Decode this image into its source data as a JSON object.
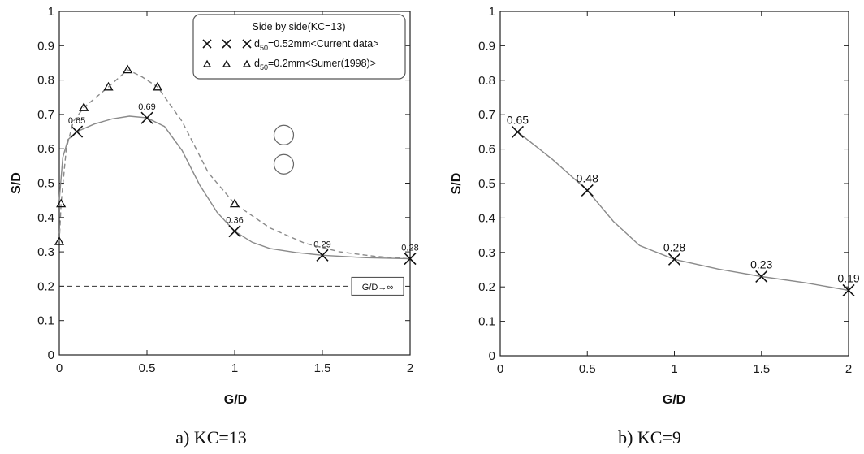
{
  "chart_data": [
    {
      "id": "a",
      "type": "line",
      "caption": "a) KC=13",
      "xlabel": "G/D",
      "ylabel": "S/D",
      "xlim": [
        0,
        2
      ],
      "ylim": [
        0,
        1
      ],
      "xticks": [
        "0",
        "0.5",
        "1",
        "1.5",
        "2"
      ],
      "yticks": [
        "0",
        "0.1",
        "0.2",
        "0.3",
        "0.4",
        "0.5",
        "0.6",
        "0.7",
        "0.8",
        "0.9",
        "1"
      ],
      "grid": false,
      "legend": {
        "placement": "top-right",
        "title": "Side by side(KC=13)",
        "entries": [
          {
            "series": 0,
            "marker_count": 3,
            "text_main": "d",
            "text_sub": "50",
            "text_rest": "=0.52mm<Current data>"
          },
          {
            "series": 1,
            "marker_count": 3,
            "text_main": "d",
            "text_sub": "50",
            "text_rest": "=0.2mm<Sumer(1998)>"
          }
        ]
      },
      "series": [
        {
          "marker": "x",
          "line": "solid",
          "color": "#8a8a8a",
          "x": [
            0.1,
            0.5,
            1.0,
            1.5,
            2.0
          ],
          "y": [
            0.65,
            0.69,
            0.36,
            0.29,
            0.28
          ],
          "labels": [
            "0.65",
            "0.69",
            "0.36",
            "0.29",
            "0.28"
          ],
          "curve": [
            [
              0.0,
              0.45
            ],
            [
              0.02,
              0.575
            ],
            [
              0.05,
              0.627
            ],
            [
              0.1,
              0.65
            ],
            [
              0.2,
              0.672
            ],
            [
              0.3,
              0.687
            ],
            [
              0.4,
              0.695
            ],
            [
              0.5,
              0.69
            ],
            [
              0.6,
              0.665
            ],
            [
              0.7,
              0.595
            ],
            [
              0.8,
              0.495
            ],
            [
              0.9,
              0.415
            ],
            [
              1.0,
              0.36
            ],
            [
              1.1,
              0.328
            ],
            [
              1.2,
              0.31
            ],
            [
              1.35,
              0.298
            ],
            [
              1.5,
              0.29
            ],
            [
              1.75,
              0.283
            ],
            [
              2.0,
              0.28
            ]
          ]
        },
        {
          "marker": "triangle",
          "line": "dashed",
          "color": "#8a8a8a",
          "x": [
            0.0,
            0.01,
            0.14,
            0.28,
            0.39,
            0.56,
            1.0
          ],
          "y": [
            0.33,
            0.44,
            0.72,
            0.78,
            0.83,
            0.78,
            0.44
          ],
          "curve": [
            [
              0.0,
              0.33
            ],
            [
              0.01,
              0.44
            ],
            [
              0.04,
              0.6
            ],
            [
              0.08,
              0.68
            ],
            [
              0.14,
              0.72
            ],
            [
              0.28,
              0.78
            ],
            [
              0.39,
              0.83
            ],
            [
              0.47,
              0.81
            ],
            [
              0.56,
              0.78
            ],
            [
              0.7,
              0.68
            ],
            [
              0.85,
              0.53
            ],
            [
              1.0,
              0.44
            ],
            [
              1.2,
              0.37
            ],
            [
              1.4,
              0.325
            ],
            [
              1.6,
              0.3
            ],
            [
              1.8,
              0.287
            ],
            [
              2.0,
              0.28
            ]
          ]
        }
      ],
      "reference_line": {
        "y": 0.2,
        "label": "G/D→∞"
      },
      "annotation_circles": [
        {
          "x": 1.28,
          "y": 0.64
        },
        {
          "x": 1.28,
          "y": 0.555
        }
      ]
    },
    {
      "id": "b",
      "type": "line",
      "caption": "b) KC=9",
      "xlabel": "G/D",
      "ylabel": "S/D",
      "xlim": [
        0,
        2
      ],
      "ylim": [
        0,
        1
      ],
      "xticks": [
        "0",
        "0.5",
        "1",
        "1.5",
        "2"
      ],
      "yticks": [
        "0",
        "0.1",
        "0.2",
        "0.3",
        "0.4",
        "0.5",
        "0.6",
        "0.7",
        "0.8",
        "0.9",
        "1"
      ],
      "grid": false,
      "series": [
        {
          "marker": "x",
          "line": "solid",
          "color": "#8a8a8a",
          "x": [
            0.1,
            0.5,
            1.0,
            1.5,
            2.0
          ],
          "y": [
            0.65,
            0.48,
            0.28,
            0.23,
            0.19
          ],
          "labels": [
            "0.65",
            "0.48",
            "0.28",
            "0.23",
            "0.19"
          ],
          "curve": [
            [
              0.1,
              0.65
            ],
            [
              0.3,
              0.57
            ],
            [
              0.5,
              0.48
            ],
            [
              0.65,
              0.39
            ],
            [
              0.8,
              0.32
            ],
            [
              1.0,
              0.28
            ],
            [
              1.25,
              0.252
            ],
            [
              1.5,
              0.23
            ],
            [
              1.75,
              0.212
            ],
            [
              2.0,
              0.19
            ]
          ]
        }
      ]
    }
  ]
}
